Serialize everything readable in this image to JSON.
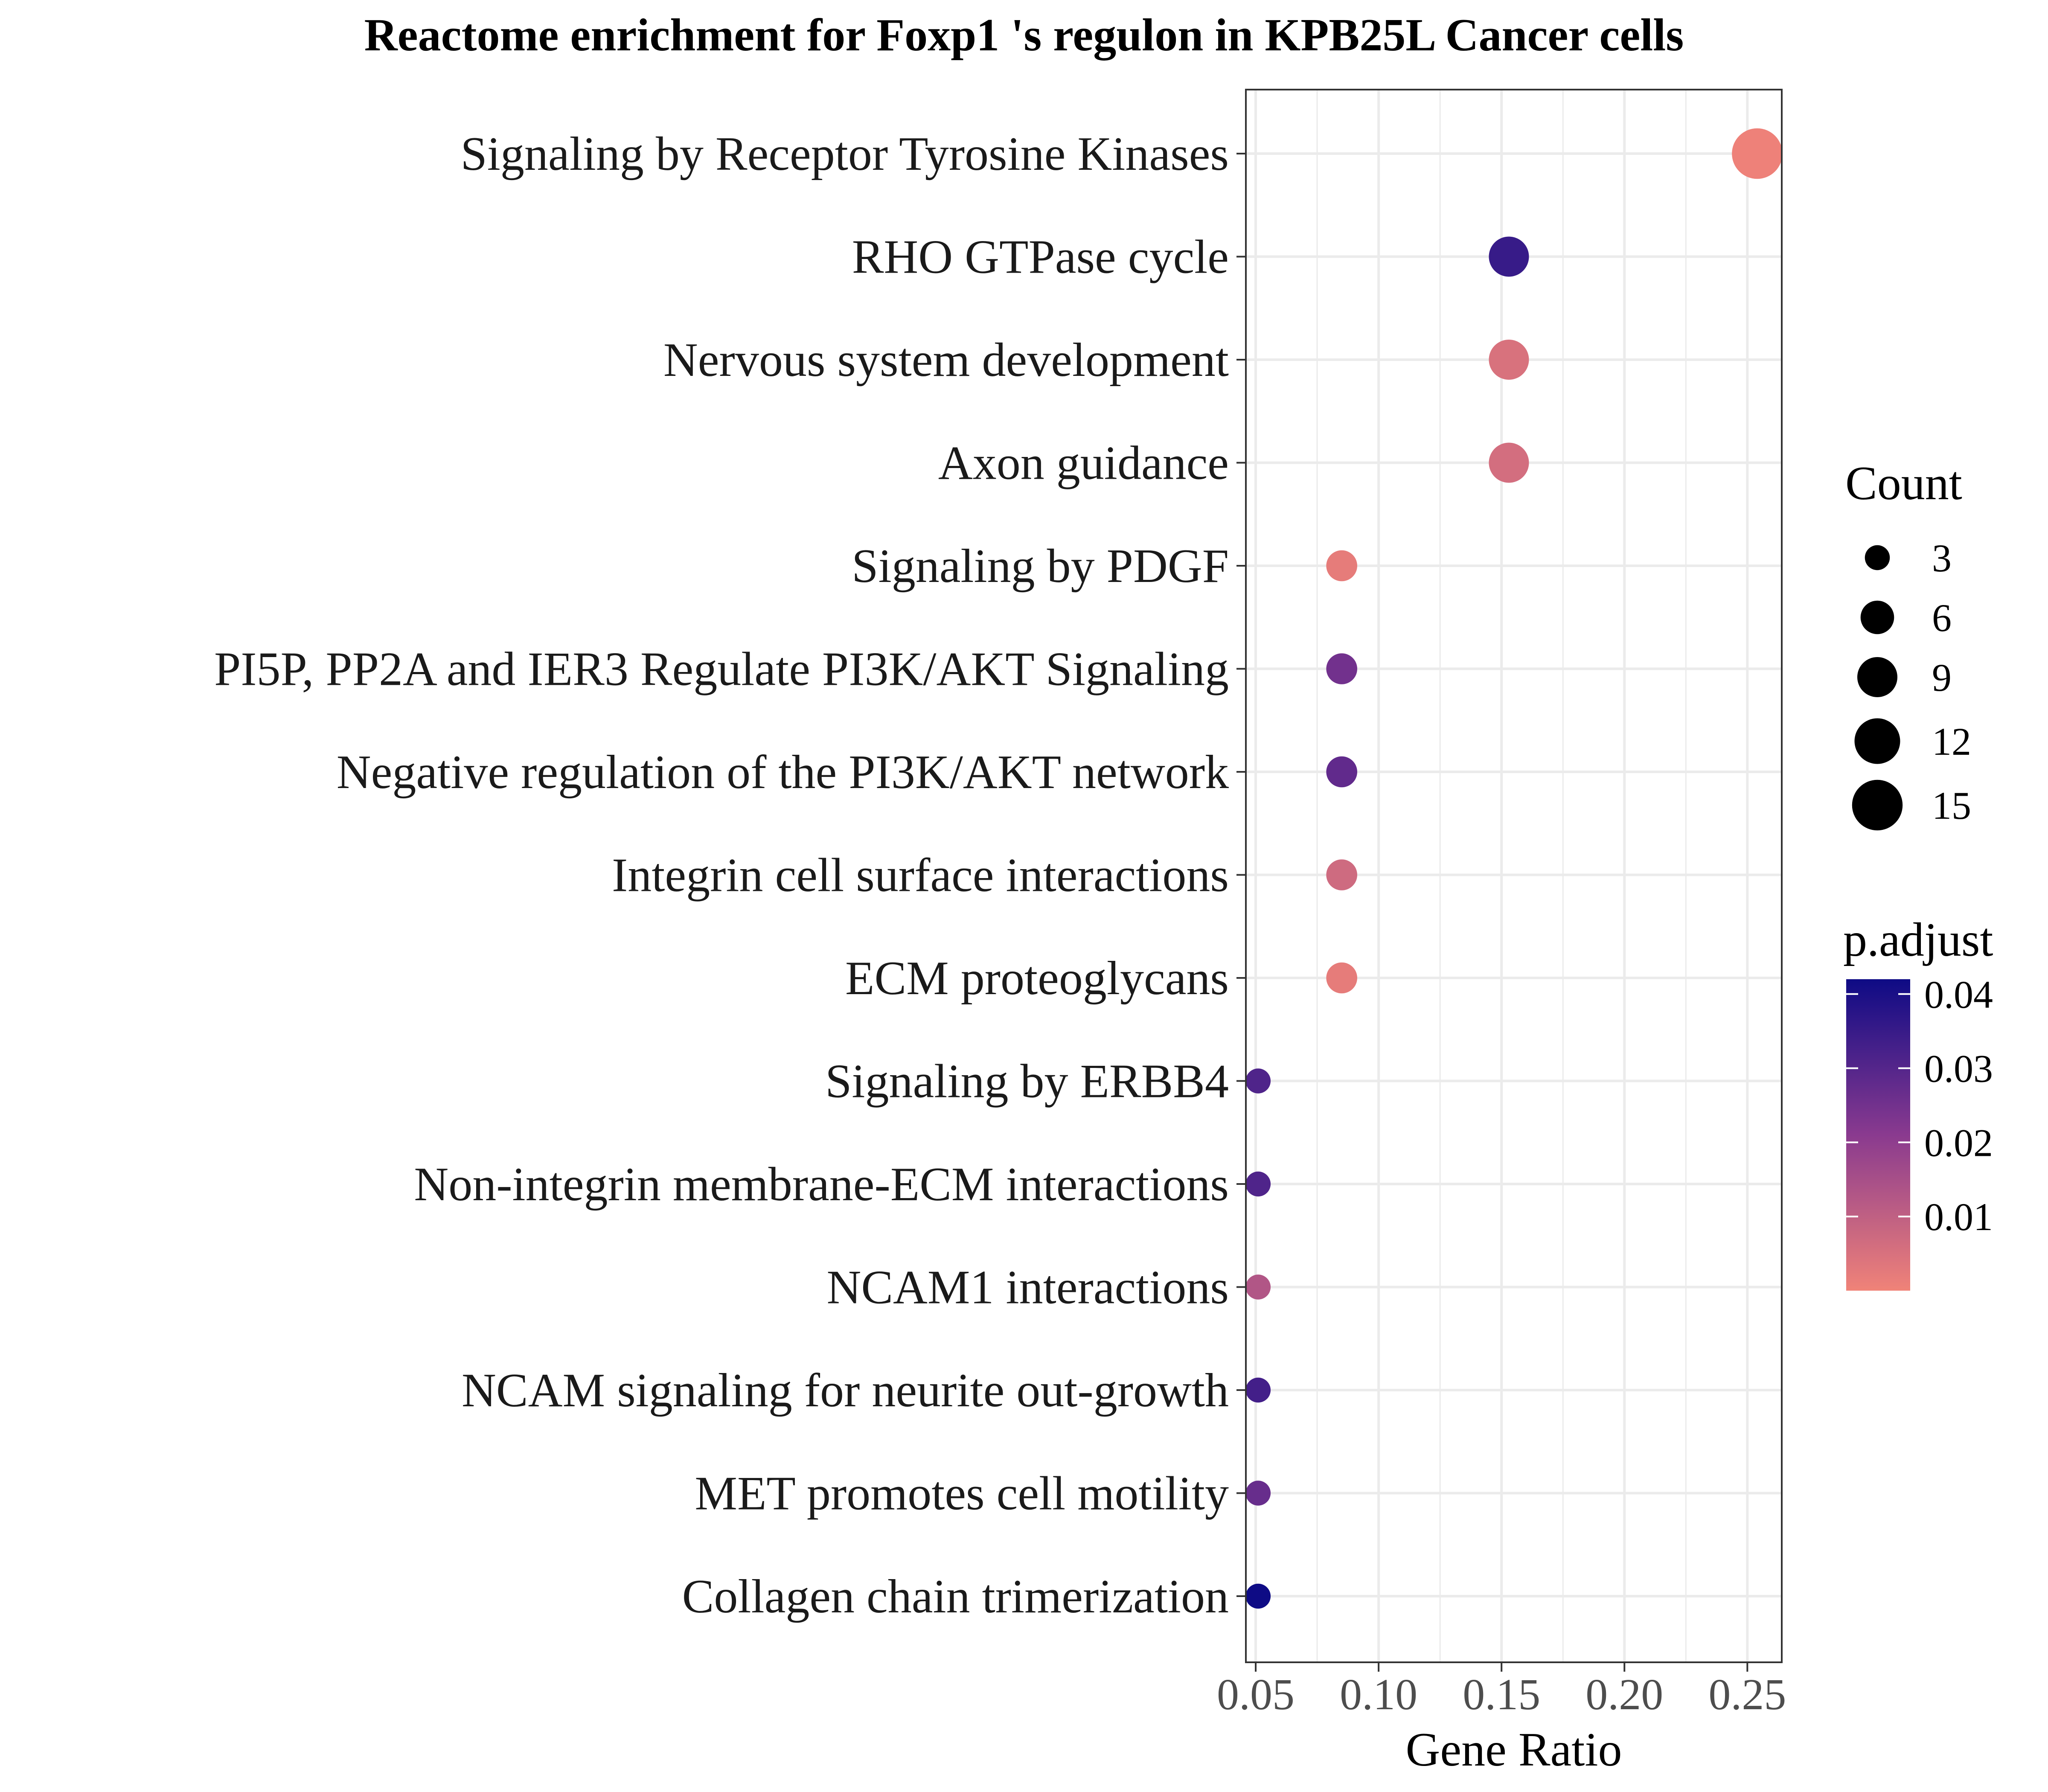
{
  "chart_data": {
    "type": "scatter",
    "title": "Reactome enrichment for Foxp1 's regulon in KPB25L Cancer cells",
    "xlabel": "Gene Ratio",
    "ylabel": "",
    "xlim": [
      0.046,
      0.264
    ],
    "xticks": [
      0.05,
      0.1,
      0.15,
      0.2,
      0.25
    ],
    "xtick_labels": [
      "0.05",
      "0.10",
      "0.15",
      "0.20",
      "0.25"
    ],
    "grid": true,
    "legend_position": "right",
    "categories": [
      "Signaling by Receptor Tyrosine Kinases",
      "RHO GTPase cycle",
      "Nervous system development",
      "Axon guidance",
      "Signaling by PDGF",
      "PI5P, PP2A and IER3 Regulate PI3K/AKT Signaling",
      "Negative regulation of the PI3K/AKT network",
      "Integrin cell surface interactions",
      "ECM proteoglycans",
      "Signaling by ERBB4",
      "Non-integrin membrane-ECM interactions",
      "NCAM1 interactions",
      "NCAM signaling for neurite out-growth",
      "MET promotes cell motility",
      "Collagen chain trimerization"
    ],
    "points": [
      {
        "term": "Signaling by Receptor Tyrosine Kinases",
        "gene_ratio": 0.254,
        "count": 15,
        "p_adjust": 0.0005
      },
      {
        "term": "RHO GTPase cycle",
        "gene_ratio": 0.153,
        "count": 9,
        "p_adjust": 0.035
      },
      {
        "term": "Nervous system development",
        "gene_ratio": 0.153,
        "count": 9,
        "p_adjust": 0.005
      },
      {
        "term": "Axon guidance",
        "gene_ratio": 0.153,
        "count": 9,
        "p_adjust": 0.006
      },
      {
        "term": "Signaling by PDGF",
        "gene_ratio": 0.085,
        "count": 5,
        "p_adjust": 0.002
      },
      {
        "term": "PI5P, PP2A and IER3 Regulate PI3K/AKT Signaling",
        "gene_ratio": 0.085,
        "count": 5,
        "p_adjust": 0.025
      },
      {
        "term": "Negative regulation of the PI3K/AKT network",
        "gene_ratio": 0.085,
        "count": 5,
        "p_adjust": 0.028
      },
      {
        "term": "Integrin cell surface interactions",
        "gene_ratio": 0.085,
        "count": 5,
        "p_adjust": 0.007
      },
      {
        "term": "ECM proteoglycans",
        "gene_ratio": 0.085,
        "count": 5,
        "p_adjust": 0.002
      },
      {
        "term": "Signaling by ERBB4",
        "gene_ratio": 0.051,
        "count": 3,
        "p_adjust": 0.031
      },
      {
        "term": "Non-integrin membrane-ECM interactions",
        "gene_ratio": 0.051,
        "count": 3,
        "p_adjust": 0.031
      },
      {
        "term": "NCAM1 interactions",
        "gene_ratio": 0.051,
        "count": 3,
        "p_adjust": 0.013
      },
      {
        "term": "NCAM signaling for neurite out-growth",
        "gene_ratio": 0.051,
        "count": 3,
        "p_adjust": 0.033
      },
      {
        "term": "MET promotes cell motility",
        "gene_ratio": 0.051,
        "count": 3,
        "p_adjust": 0.027
      },
      {
        "term": "Collagen chain trimerization",
        "gene_ratio": 0.051,
        "count": 3,
        "p_adjust": 0.042
      }
    ],
    "size_legend": {
      "title": "Count",
      "values": [
        3,
        6,
        9,
        12,
        15
      ],
      "labels": [
        "3",
        "6",
        "9",
        "12",
        "15"
      ]
    },
    "color_legend": {
      "title": "p.adjust",
      "range": [
        0.0,
        0.042
      ],
      "ticks": [
        0.04,
        0.03,
        0.02,
        0.01
      ],
      "labels": [
        "0.04",
        "0.03",
        "0.02",
        "0.01"
      ],
      "colors": {
        "low": "#f08378",
        "mid": "#8a3a8f",
        "high": "#0e0b85"
      }
    },
    "colors": {
      "panel_border": "#333333",
      "grid": "#ebebeb",
      "tick": "#333333"
    }
  }
}
